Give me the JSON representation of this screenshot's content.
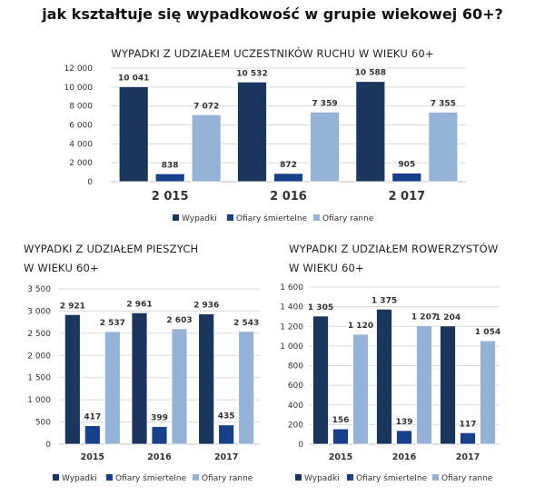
{
  "page_title": "jak kształtuje się wypadkowość w grupie wiekowej 60+?",
  "colors": {
    "Wypadki": "#1b365d",
    "Ofiary śmiertelne": "#173f8a",
    "Ofiary ranne": "#95b3d7"
  },
  "chart_data": [
    {
      "type": "bar",
      "title": "WYPADKI Z UDZIAŁEM UCZESTNIKÓW RUCHU W WIEKU 60+",
      "title_lines": [
        "WYPADKI Z UDZIAŁEM UCZESTNIKÓW RUCHU W WIEKU 60+"
      ],
      "categories": [
        "2 015",
        "2 016",
        "2 017"
      ],
      "series": [
        {
          "name": "Wypadki",
          "values": [
            10041,
            10532,
            10588
          ],
          "labels": [
            "10 041",
            "10 532",
            "10 588"
          ]
        },
        {
          "name": "Ofiary śmiertelne",
          "values": [
            838,
            872,
            905
          ],
          "labels": [
            "838",
            "872",
            "905"
          ]
        },
        {
          "name": "Ofiary ranne",
          "values": [
            7072,
            7359,
            7355
          ],
          "labels": [
            "7 072",
            "7 359",
            "7 355"
          ]
        }
      ],
      "ylim": [
        0,
        12000
      ],
      "yticks": [
        "0",
        "2 000",
        "4 000",
        "6 000",
        "8 000",
        "10 000",
        "12 000"
      ],
      "grid": true,
      "legend": "bottom"
    },
    {
      "type": "bar",
      "title": "WYPADKI Z UDZIAŁEM PIESZYCH W WIEKU 60+",
      "title_lines": [
        "WYPADKI Z UDZIAŁEM PIESZYCH",
        "W WIEKU 60+"
      ],
      "categories": [
        "2015",
        "2016",
        "2017"
      ],
      "series": [
        {
          "name": "Wypadki",
          "values": [
            2921,
            2961,
            2936
          ],
          "labels": [
            "2 921",
            "2 961",
            "2 936"
          ]
        },
        {
          "name": "Ofiary śmiertelne",
          "values": [
            417,
            399,
            435
          ],
          "labels": [
            "417",
            "399",
            "435"
          ]
        },
        {
          "name": "Ofiary ranne",
          "values": [
            2537,
            2603,
            2543
          ],
          "labels": [
            "2 537",
            "2 603",
            "2 543"
          ]
        }
      ],
      "ylim": [
        0,
        3500
      ],
      "yticks": [
        "0",
        "500",
        "1 000",
        "1 500",
        "2 000",
        "2 500",
        "3 000",
        "3 500"
      ],
      "grid": true,
      "legend": "bottom"
    },
    {
      "type": "bar",
      "title": "WYPADKI Z UDZIAŁEM ROWERZYSTÓW W WIEKU 60+",
      "title_lines": [
        "WYPADKI Z UDZIAŁEM ROWERZYSTÓW",
        "W WIEKU 60+"
      ],
      "categories": [
        "2015",
        "2016",
        "2017"
      ],
      "series": [
        {
          "name": "Wypadki",
          "values": [
            1305,
            1375,
            1204
          ],
          "labels": [
            "1 305",
            "1 375",
            "1 204"
          ]
        },
        {
          "name": "Ofiary śmiertelne",
          "values": [
            156,
            139,
            117
          ],
          "labels": [
            "156",
            "139",
            "117"
          ]
        },
        {
          "name": "Ofiary ranne",
          "values": [
            1120,
            1207,
            1054
          ],
          "labels": [
            "1 120",
            "1 207",
            "1 054"
          ]
        }
      ],
      "ylim": [
        0,
        1600
      ],
      "yticks": [
        "0",
        "200",
        "400",
        "600",
        "800",
        "1 000",
        "1 200",
        "1 400",
        "1 600"
      ],
      "grid": true,
      "legend": "bottom"
    }
  ]
}
